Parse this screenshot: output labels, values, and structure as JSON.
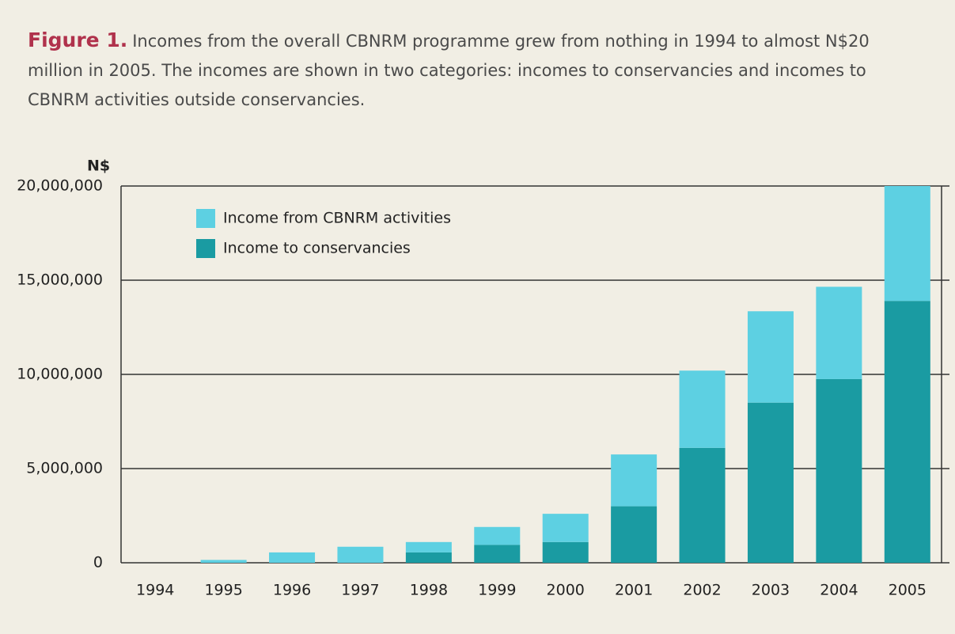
{
  "chart_data": {
    "type": "stacked_bar",
    "title": "Figure 1.",
    "subtitle": "Incomes from the overall CBNRM programme grew from nothing in 1994 to almost N$20 million in 2005. The incomes are shown in two categories: incomes to conservancies and incomes to CBNRM activities outside conservancies.",
    "y_label": "N$",
    "categories": [
      "1994",
      "1995",
      "1996",
      "1997",
      "1998",
      "1999",
      "2000",
      "2001",
      "2002",
      "2003",
      "2004",
      "2005"
    ],
    "series": [
      {
        "name": "Income from CBNRM activities",
        "color": "#5dd0e2",
        "values": [
          0,
          150000,
          550000,
          850000,
          550000,
          950000,
          1500000,
          2750000,
          4100000,
          4850000,
          4900000,
          6100000
        ]
      },
      {
        "name": "Income to conservancies",
        "color": "#1a9ba2",
        "values": [
          0,
          0,
          0,
          0,
          550000,
          950000,
          1100000,
          3000000,
          6100000,
          8500000,
          9750000,
          13900000
        ]
      }
    ],
    "ylim": [
      0,
      20000000
    ],
    "yticks": [
      0,
      {
        "value": 5000000,
        "label": "5,000,000"
      },
      {
        "value": 10000000,
        "label": "10,000,000"
      },
      {
        "value": 15000000,
        "label": "15,000,000"
      },
      {
        "value": 20000000,
        "label": "20,000,000"
      }
    ],
    "grid": true,
    "legend": "top-left"
  }
}
